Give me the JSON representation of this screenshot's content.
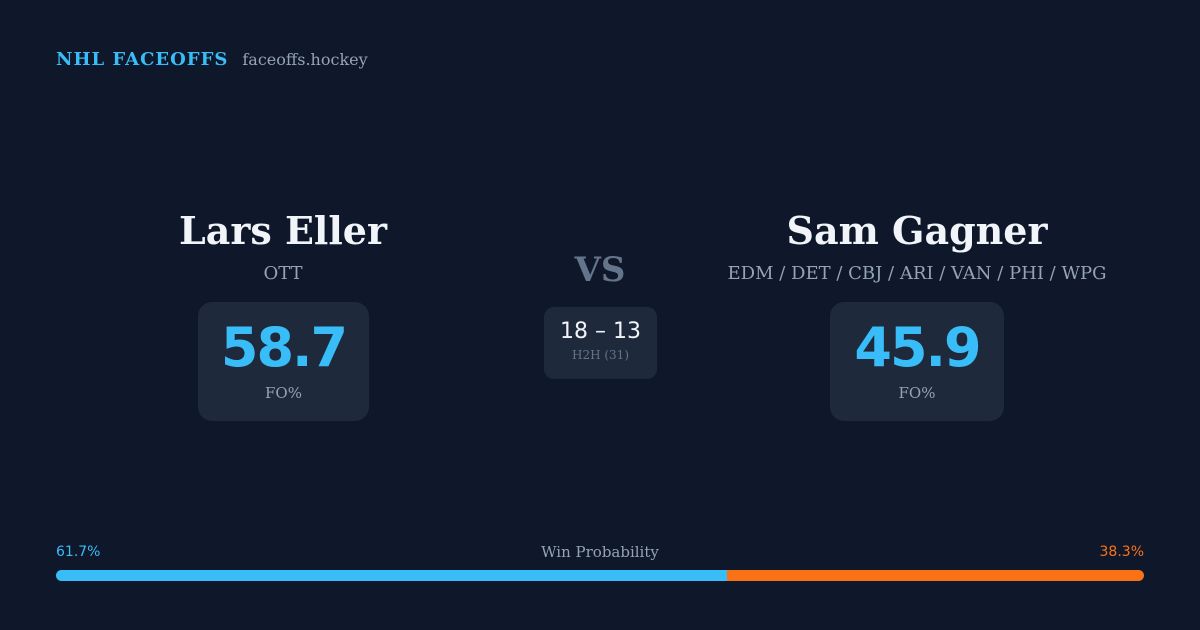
{
  "brand": {
    "name": "NHL FACEOFFS",
    "site": "faceoffs.hockey"
  },
  "player_left": {
    "name": "Lars Eller",
    "teams": "OTT",
    "fo_pct": "58.7",
    "fo_label": "FO%"
  },
  "player_right": {
    "name": "Sam Gagner",
    "teams": "EDM / DET / CBJ / ARI / VAN / PHI / WPG",
    "fo_pct": "45.9",
    "fo_label": "FO%"
  },
  "matchup": {
    "vs": "VS",
    "h2h_score": "18 – 13",
    "h2h_label": "H2H (31)"
  },
  "win_probability": {
    "title": "Win Probability",
    "left_label": "61.7%",
    "right_label": "38.3%",
    "left_fraction": 0.617,
    "left_color": "#38bdf8",
    "right_color": "#f97316"
  }
}
